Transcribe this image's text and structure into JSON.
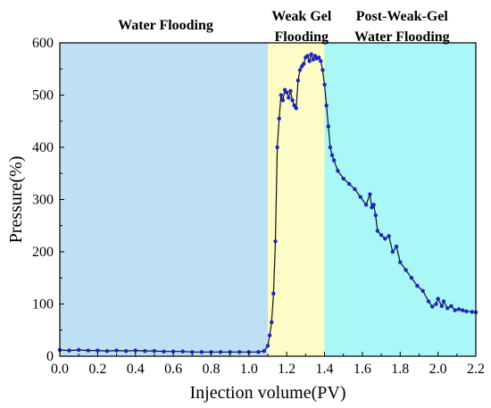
{
  "chart_data": {
    "type": "line",
    "xlabel": "Injection volume(PV)",
    "ylabel": "Pressure(%)",
    "xlim": [
      0.0,
      2.2
    ],
    "ylim": [
      0,
      600
    ],
    "x_ticks": [
      "0.0",
      "0.2",
      "0.4",
      "0.6",
      "0.8",
      "1.0",
      "1.2",
      "1.4",
      "1.6",
      "1.8",
      "2.0",
      "2.2"
    ],
    "y_ticks": [
      "0",
      "100",
      "200",
      "300",
      "400",
      "500",
      "600"
    ],
    "grid": false,
    "regions": [
      {
        "label_lines": [
          "Water Flooding"
        ],
        "x_start": 0.0,
        "x_end": 1.1,
        "color": "#bde0f5"
      },
      {
        "label_lines": [
          "Weak Gel",
          "Flooding"
        ],
        "x_start": 1.1,
        "x_end": 1.4,
        "color": "#fdfbc6"
      },
      {
        "label_lines": [
          "Post-Weak-Gel",
          "Water Flooding"
        ],
        "x_start": 1.4,
        "x_end": 2.2,
        "color": "#a9f7f7"
      }
    ],
    "series": [
      {
        "color": "#1a23c4",
        "marker": "circle",
        "x": [
          0.0,
          0.05,
          0.1,
          0.15,
          0.2,
          0.25,
          0.3,
          0.35,
          0.4,
          0.45,
          0.5,
          0.55,
          0.6,
          0.65,
          0.7,
          0.75,
          0.8,
          0.85,
          0.9,
          0.95,
          1.0,
          1.05,
          1.08,
          1.1,
          1.11,
          1.12,
          1.13,
          1.14,
          1.15,
          1.16,
          1.17,
          1.18,
          1.19,
          1.2,
          1.21,
          1.22,
          1.23,
          1.24,
          1.25,
          1.26,
          1.27,
          1.28,
          1.29,
          1.3,
          1.31,
          1.32,
          1.33,
          1.34,
          1.35,
          1.36,
          1.37,
          1.38,
          1.39,
          1.4,
          1.41,
          1.42,
          1.43,
          1.44,
          1.45,
          1.47,
          1.5,
          1.53,
          1.56,
          1.59,
          1.62,
          1.64,
          1.65,
          1.66,
          1.67,
          1.68,
          1.7,
          1.72,
          1.74,
          1.76,
          1.78,
          1.8,
          1.83,
          1.86,
          1.89,
          1.92,
          1.95,
          1.97,
          1.99,
          2.0,
          2.02,
          2.03,
          2.05,
          2.07,
          2.09,
          2.11,
          2.13,
          2.15,
          2.18,
          2.2
        ],
        "y": [
          12,
          11,
          12,
          11,
          11,
          10,
          11,
          10,
          11,
          10,
          10,
          9,
          9,
          9,
          8,
          8,
          8,
          8,
          8,
          8,
          8,
          8,
          10,
          20,
          40,
          65,
          120,
          220,
          400,
          455,
          500,
          490,
          510,
          505,
          495,
          508,
          490,
          480,
          475,
          528,
          548,
          555,
          560,
          572,
          575,
          565,
          578,
          568,
          575,
          570,
          572,
          565,
          548,
          520,
          480,
          440,
          400,
          385,
          375,
          355,
          340,
          330,
          320,
          305,
          290,
          310,
          285,
          290,
          270,
          240,
          232,
          225,
          230,
          200,
          210,
          180,
          165,
          150,
          135,
          125,
          105,
          95,
          100,
          110,
          96,
          105,
          92,
          96,
          88,
          90,
          88,
          86,
          85,
          84
        ]
      }
    ]
  }
}
